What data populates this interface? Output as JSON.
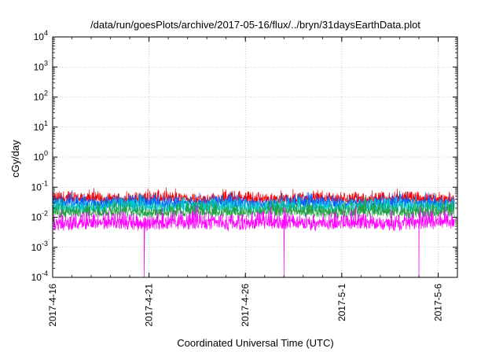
{
  "chart_data": {
    "type": "line",
    "title": "/data/run/goesPlots/archive/2017-05-16/flux/../bryn/31daysEarthData.plot",
    "xlabel": "Coordinated Universal Time (UTC)",
    "ylabel": "cGy/day",
    "y_scale": "log",
    "ylim": [
      0.0001,
      10000
    ],
    "y_ticks": [
      {
        "base": "10",
        "exp": "-4",
        "value": 0.0001
      },
      {
        "base": "10",
        "exp": "-3",
        "value": 0.001
      },
      {
        "base": "10",
        "exp": "-2",
        "value": 0.01
      },
      {
        "base": "10",
        "exp": "-1",
        "value": 0.1
      },
      {
        "base": "10",
        "exp": "0",
        "value": 1
      },
      {
        "base": "10",
        "exp": "1",
        "value": 10
      },
      {
        "base": "10",
        "exp": "2",
        "value": 100
      },
      {
        "base": "10",
        "exp": "3",
        "value": 1000
      },
      {
        "base": "10",
        "exp": "4",
        "value": 10000
      }
    ],
    "xlim": [
      "2017-04-16",
      "2017-05-07"
    ],
    "x_ticks": [
      "2017-4-16",
      "2017-4-21",
      "2017-4-26",
      "2017-5-1",
      "2017-5-6"
    ],
    "grid": true,
    "legend": "none",
    "series": [
      {
        "color": "#ff0000",
        "typical_low": 0.03,
        "typical_high": 0.07
      },
      {
        "color": "#0060ff",
        "typical_low": 0.02,
        "typical_high": 0.055
      },
      {
        "color": "#00c8c8",
        "typical_low": 0.015,
        "typical_high": 0.04
      },
      {
        "color": "#20a040",
        "typical_low": 0.01,
        "typical_high": 0.03
      },
      {
        "color": "#ff00ff",
        "typical_low": 0.004,
        "typical_high": 0.015
      }
    ],
    "dropouts": [
      {
        "date": "2017-04-20 18:00",
        "value": 0.0001
      },
      {
        "date": "2017-04-28 00:00",
        "value": 0.0001
      },
      {
        "date": "2017-05-05 00:00",
        "value": 0.0001
      }
    ]
  }
}
